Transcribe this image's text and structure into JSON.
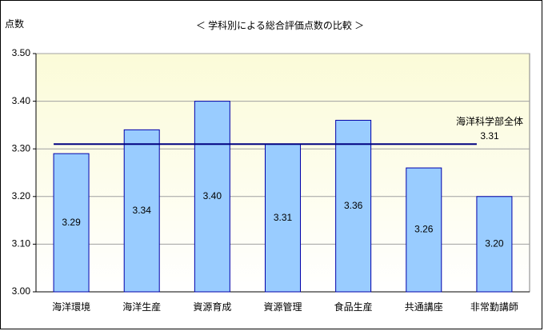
{
  "chart_data": {
    "type": "bar",
    "title": "＜ 学科別による総合評価点数の比較 ＞",
    "y_label": "点数",
    "categories": [
      "海洋環境",
      "海洋生産",
      "資源育成",
      "資源管理",
      "食品生産",
      "共通講座",
      "非常勤講師"
    ],
    "values": [
      3.29,
      3.34,
      3.4,
      3.31,
      3.36,
      3.26,
      3.2
    ],
    "value_labels": [
      "3.29",
      "3.34",
      "3.40",
      "3.31",
      "3.36",
      "3.26",
      "3.20"
    ],
    "color": "#99ccff",
    "ylim": [
      3.0,
      3.5
    ],
    "yticks": [
      {
        "value": 3.0,
        "label": "3.00"
      },
      {
        "value": 3.1,
        "label": "3.10"
      },
      {
        "value": 3.2,
        "label": "3.20"
      },
      {
        "value": 3.3,
        "label": "3.30"
      },
      {
        "value": 3.4,
        "label": "3.40"
      },
      {
        "value": 3.5,
        "label": "3.50"
      }
    ],
    "grid": true,
    "reference_line": {
      "name": "海洋科学部全体",
      "value": 3.31,
      "label": "3.31",
      "color": "#000080"
    }
  }
}
